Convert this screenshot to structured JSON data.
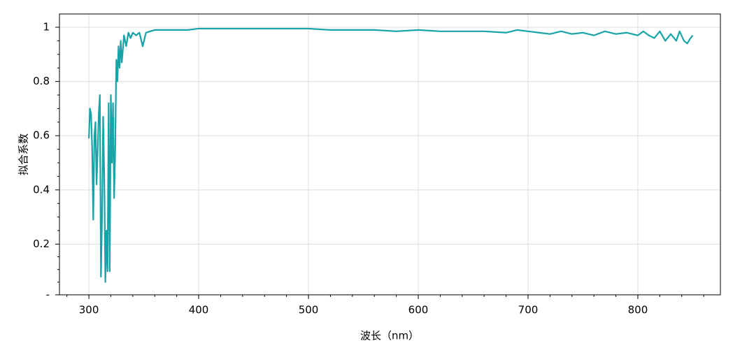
{
  "chart_data": {
    "type": "line",
    "x_label": "波长（nm）",
    "y_label": "拟合系数",
    "x": [
      300,
      301,
      302,
      303,
      304,
      305,
      306,
      307,
      308,
      309,
      310,
      311,
      312,
      313,
      314,
      315,
      316,
      317,
      318,
      319,
      320,
      321,
      322,
      323,
      324,
      325,
      326,
      327,
      328,
      329,
      330,
      332,
      334,
      336,
      338,
      340,
      343,
      346,
      349,
      352,
      356,
      360,
      370,
      380,
      390,
      400,
      420,
      440,
      460,
      480,
      500,
      520,
      540,
      560,
      580,
      600,
      620,
      640,
      660,
      680,
      690,
      700,
      710,
      720,
      730,
      740,
      750,
      760,
      770,
      780,
      790,
      800,
      805,
      810,
      815,
      820,
      825,
      830,
      835,
      838,
      842,
      845,
      848,
      850
    ],
    "series": [
      {
        "name": "拟合系数",
        "color": "#17a3a8",
        "values": [
          0.59,
          0.7,
          0.68,
          0.55,
          0.29,
          0.6,
          0.65,
          0.42,
          0.55,
          0.68,
          0.75,
          0.08,
          0.3,
          0.67,
          0.45,
          0.06,
          0.25,
          0.1,
          0.72,
          0.1,
          0.75,
          0.5,
          0.72,
          0.37,
          0.55,
          0.88,
          0.8,
          0.93,
          0.85,
          0.95,
          0.87,
          0.97,
          0.93,
          0.98,
          0.96,
          0.98,
          0.97,
          0.98,
          0.93,
          0.98,
          0.985,
          0.99,
          0.99,
          0.99,
          0.99,
          0.995,
          0.995,
          0.995,
          0.995,
          0.995,
          0.995,
          0.99,
          0.99,
          0.99,
          0.985,
          0.99,
          0.985,
          0.985,
          0.985,
          0.98,
          0.99,
          0.985,
          0.98,
          0.975,
          0.985,
          0.975,
          0.98,
          0.97,
          0.985,
          0.975,
          0.98,
          0.97,
          0.985,
          0.97,
          0.96,
          0.985,
          0.95,
          0.975,
          0.95,
          0.985,
          0.95,
          0.94,
          0.96,
          0.97
        ]
      }
    ],
    "xlim": [
      273.2,
      875.2
    ],
    "xticks": [
      300,
      400,
      500,
      600,
      700,
      800
    ],
    "ylim": [
      0.013,
      1.049
    ],
    "yticks": [
      {
        "value": 0.013,
        "label": "-"
      },
      0.2,
      0.4,
      0.6,
      0.8,
      1
    ],
    "grid": true
  }
}
